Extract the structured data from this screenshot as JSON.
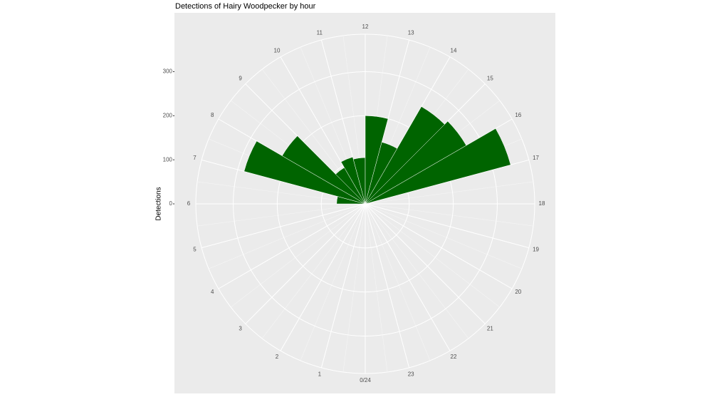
{
  "chart_data": {
    "type": "polar-bar",
    "title": "Detections of Hairy Woodpecker by hour",
    "y_label": "Detections",
    "x": [
      0,
      1,
      2,
      3,
      4,
      5,
      6,
      7,
      8,
      9,
      10,
      11,
      12,
      13,
      14,
      15,
      16,
      17,
      18,
      19,
      20,
      21,
      22,
      23
    ],
    "values": [
      0,
      0,
      0,
      0,
      0,
      0,
      65,
      285,
      218,
      95,
      110,
      105,
      200,
      145,
      255,
      265,
      342,
      0,
      0,
      0,
      0,
      0,
      0,
      0
    ],
    "color": "#006400",
    "xlim": [
      0,
      24
    ],
    "xticks": [
      {
        "value": 0,
        "label": "0/24"
      },
      1,
      2,
      3,
      4,
      5,
      6,
      7,
      8,
      9,
      10,
      11,
      12,
      13,
      14,
      15,
      16,
      17,
      18,
      19,
      20,
      21,
      22,
      23
    ],
    "ylim": [
      0,
      385
    ],
    "yticks": [
      0,
      100,
      200,
      300
    ],
    "grid": true
  }
}
